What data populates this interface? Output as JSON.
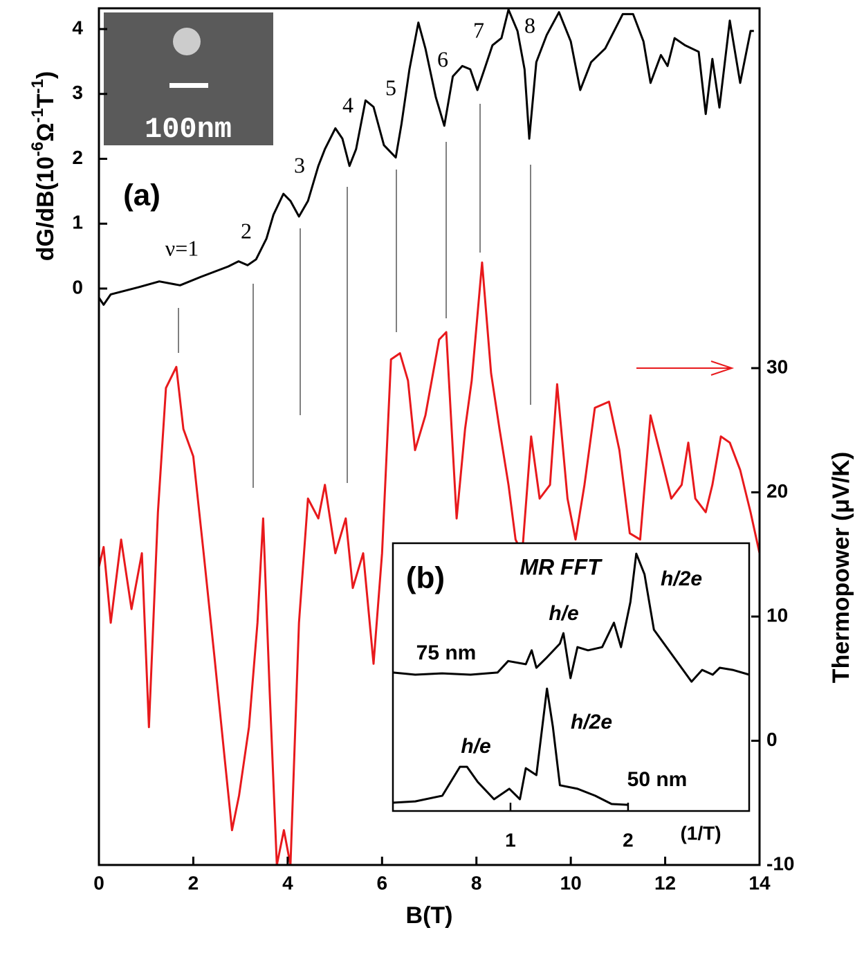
{
  "chart_data": [
    {
      "type": "line",
      "xlabel": "B(T)",
      "ylabel": [
        "dG/dB(10",
        "-6",
        "Ω",
        "-1",
        "T",
        "-1",
        ")"
      ],
      "y2label": "Thermopower (μV/K)",
      "xlim": [
        0,
        14
      ],
      "xticks": [
        0,
        2,
        4,
        6,
        8,
        10,
        12,
        14
      ],
      "ylim": [
        -8.885,
        4.32
      ],
      "yticks": [
        0,
        1,
        2,
        3,
        4
      ],
      "y2lim": [
        -10,
        58.97
      ],
      "y2ticks": [
        -10,
        0,
        10,
        20,
        30
      ],
      "annotations": [
        "ν=1",
        "2",
        "3",
        "4",
        "5",
        "6",
        "7",
        "8",
        "(a)"
      ],
      "inset_image_label": "100nm",
      "series": [
        {
          "color": "#000000",
          "axis": "y",
          "x": [
            0,
            0.1,
            0.25,
            0.84,
            1.28,
            1.72,
            2.16,
            2.74,
            2.96,
            3.15,
            3.33,
            3.55,
            3.7,
            3.91,
            4.06,
            4.24,
            4.43,
            4.65,
            4.79,
            5.01,
            5.16,
            5.31,
            5.45,
            5.65,
            5.82,
            6.04,
            6.29,
            6.41,
            6.58,
            6.77,
            6.92,
            7.14,
            7.32,
            7.5,
            7.7,
            7.87,
            8.02,
            8.17,
            8.34,
            8.53,
            8.68,
            8.87,
            9.02,
            9.12,
            9.27,
            9.49,
            9.75,
            10.0,
            10.2,
            10.43,
            10.73,
            11.1,
            11.32,
            11.54,
            11.69,
            11.91,
            12.05,
            12.2,
            12.42,
            12.71,
            12.86,
            13.0,
            13.15,
            13.37,
            13.59,
            13.81,
            13.88
          ],
          "values": [
            -0.14,
            -0.25,
            -0.09,
            0.02,
            0.11,
            0.05,
            0.18,
            0.34,
            0.42,
            0.36,
            0.45,
            0.77,
            1.14,
            1.46,
            1.35,
            1.11,
            1.35,
            1.89,
            2.15,
            2.47,
            2.31,
            1.89,
            2.15,
            2.9,
            2.8,
            2.21,
            2.02,
            2.53,
            3.38,
            4.1,
            3.7,
            2.95,
            2.51,
            3.27,
            3.43,
            3.38,
            3.06,
            3.38,
            3.75,
            3.86,
            4.3,
            3.97,
            3.38,
            2.31,
            3.49,
            3.91,
            4.26,
            3.81,
            3.06,
            3.49,
            3.7,
            4.23,
            4.23,
            3.81,
            3.17,
            3.6,
            3.43,
            3.86,
            3.75,
            3.65,
            2.69,
            3.54,
            2.79,
            4.13,
            3.17,
            3.97,
            3.97
          ]
        },
        {
          "color": "#e8191c",
          "axis": "y2",
          "x": [
            0,
            0.1,
            0.25,
            0.47,
            0.69,
            0.91,
            1.06,
            1.25,
            1.42,
            1.64,
            1.79,
            2.0,
            2.22,
            2.45,
            2.67,
            2.82,
            2.97,
            3.18,
            3.36,
            3.48,
            3.62,
            3.77,
            3.92,
            4.06,
            4.24,
            4.43,
            4.65,
            4.79,
            5.01,
            5.23,
            5.38,
            5.6,
            5.82,
            6.0,
            6.19,
            6.38,
            6.55,
            6.7,
            6.92,
            7.21,
            7.36,
            7.58,
            7.76,
            7.9,
            8.12,
            8.31,
            8.49,
            8.68,
            8.83,
            8.97,
            9.16,
            9.34,
            9.56,
            9.71,
            9.93,
            10.1,
            10.29,
            10.51,
            10.81,
            11.03,
            11.25,
            11.47,
            11.69,
            11.91,
            12.13,
            12.35,
            12.49,
            12.64,
            12.86,
            13.0,
            13.18,
            13.37,
            13.59,
            13.81,
            14.0
          ],
          "values": [
            14.0,
            15.6,
            9.5,
            16.2,
            10.6,
            15.1,
            1.1,
            18.4,
            28.4,
            30.1,
            25.1,
            22.9,
            15.1,
            6.7,
            -1.6,
            -7.2,
            -4.4,
            1.1,
            9.5,
            17.9,
            3.9,
            -10,
            -7.2,
            -10,
            9.5,
            19.5,
            17.9,
            20.6,
            15.1,
            17.9,
            12.3,
            15.1,
            6.2,
            15.1,
            30.7,
            31.2,
            29.0,
            23.4,
            26.2,
            32.3,
            32.9,
            17.9,
            25.1,
            29.0,
            38.5,
            29.6,
            25.1,
            20.6,
            16.2,
            15.1,
            24.5,
            19.5,
            20.6,
            28.7,
            19.5,
            16.2,
            20.6,
            26.8,
            27.3,
            23.4,
            16.7,
            16.2,
            26.2,
            22.9,
            19.5,
            20.6,
            24.0,
            19.5,
            18.4,
            20.6,
            24.5,
            24.0,
            21.8,
            18.4,
            15.1
          ]
        }
      ]
    },
    {
      "type": "line",
      "title": "MR FFT",
      "xlabel": "(1/T)",
      "xlim": [
        0,
        3.03
      ],
      "xticks": [
        1,
        2
      ],
      "ylim": [
        0,
        10
      ],
      "annotations": [
        "(b)",
        "h/e",
        "h/2e",
        "75 nm",
        "h/e",
        "h/2e",
        "50 nm"
      ],
      "series": [
        {
          "color": "#000000",
          "x": [
            0,
            0.19,
            0.42,
            0.66,
            0.89,
            0.98,
            1.13,
            1.18,
            1.22,
            1.31,
            1.42,
            1.45,
            1.51,
            1.57,
            1.66,
            1.78,
            1.88,
            1.94,
            2.02,
            2.07,
            2.14,
            2.22,
            2.39,
            2.54,
            2.63,
            2.72,
            2.78,
            2.89,
            3.03
          ],
          "values": [
            5.17,
            5.09,
            5.14,
            5.09,
            5.17,
            5.6,
            5.48,
            6.0,
            5.35,
            5.74,
            6.25,
            6.64,
            4.96,
            6.12,
            6.0,
            6.12,
            7.03,
            6.12,
            7.8,
            9.61,
            8.84,
            6.77,
            5.74,
            4.83,
            5.27,
            5.09,
            5.35,
            5.27,
            5.09
          ]
        },
        {
          "color": "#000000",
          "x": [
            0,
            0.19,
            0.42,
            0.57,
            0.63,
            0.72,
            0.86,
            0.99,
            1.08,
            1.13,
            1.22,
            1.31,
            1.36,
            1.42,
            1.57,
            1.72,
            1.86,
            2.0
          ],
          "values": [
            0.31,
            0.36,
            0.57,
            1.65,
            1.65,
            1.09,
            0.44,
            0.83,
            0.44,
            1.6,
            1.34,
            4.57,
            3.15,
            0.96,
            0.83,
            0.57,
            0.26,
            0.23
          ]
        }
      ]
    }
  ]
}
